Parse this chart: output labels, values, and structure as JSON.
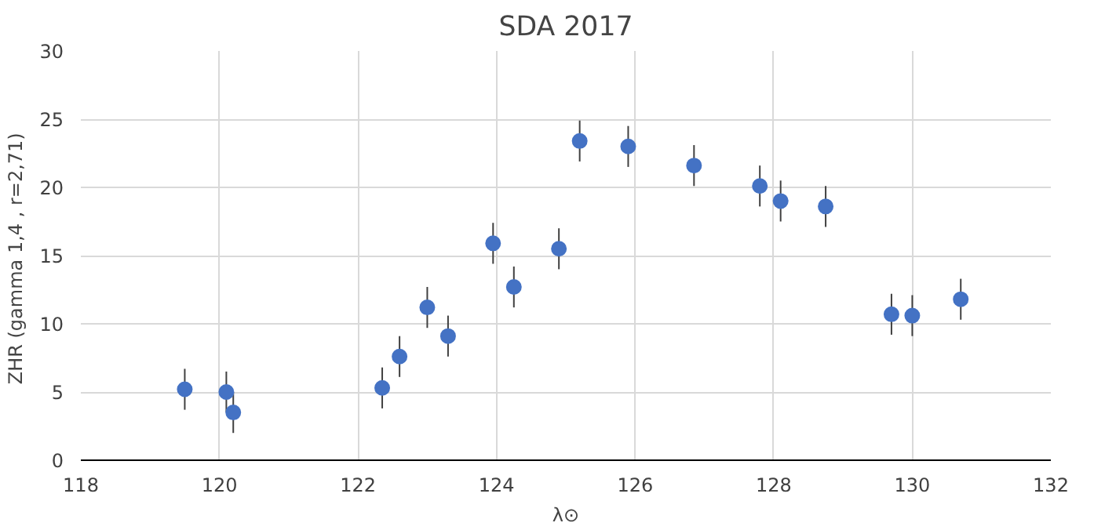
{
  "chart_data": {
    "type": "scatter",
    "title": "SDA 2017",
    "xlabel": "λ⊙",
    "ylabel": "ZHR (gamma 1,4 ,  r=2,71)",
    "x": [
      119.5,
      120.1,
      120.2,
      122.35,
      122.6,
      123.0,
      123.3,
      123.95,
      124.25,
      124.9,
      125.2,
      125.9,
      126.85,
      127.8,
      128.1,
      128.75,
      129.7,
      130.0,
      130.7
    ],
    "series": [
      {
        "color": "#4472c4",
        "values": [
          5.2,
          5.0,
          3.5,
          5.3,
          7.6,
          11.2,
          9.1,
          15.9,
          12.7,
          15.5,
          23.4,
          23.0,
          21.6,
          20.1,
          19.0,
          18.6,
          10.7,
          10.6,
          11.8
        ],
        "errors": [
          1.5,
          1.5,
          1.5,
          1.5,
          1.5,
          1.5,
          1.5,
          1.5,
          1.5,
          1.5,
          1.5,
          1.5,
          1.5,
          1.5,
          1.5,
          1.5,
          1.5,
          1.5,
          1.5
        ]
      }
    ],
    "xlim": [
      118,
      132
    ],
    "ylim": [
      0,
      30
    ],
    "xticks": [
      118,
      120,
      122,
      124,
      126,
      128,
      130,
      132
    ],
    "yticks": [
      0,
      5,
      10,
      15,
      20,
      25,
      30
    ],
    "grid": true,
    "marker": "circle"
  }
}
